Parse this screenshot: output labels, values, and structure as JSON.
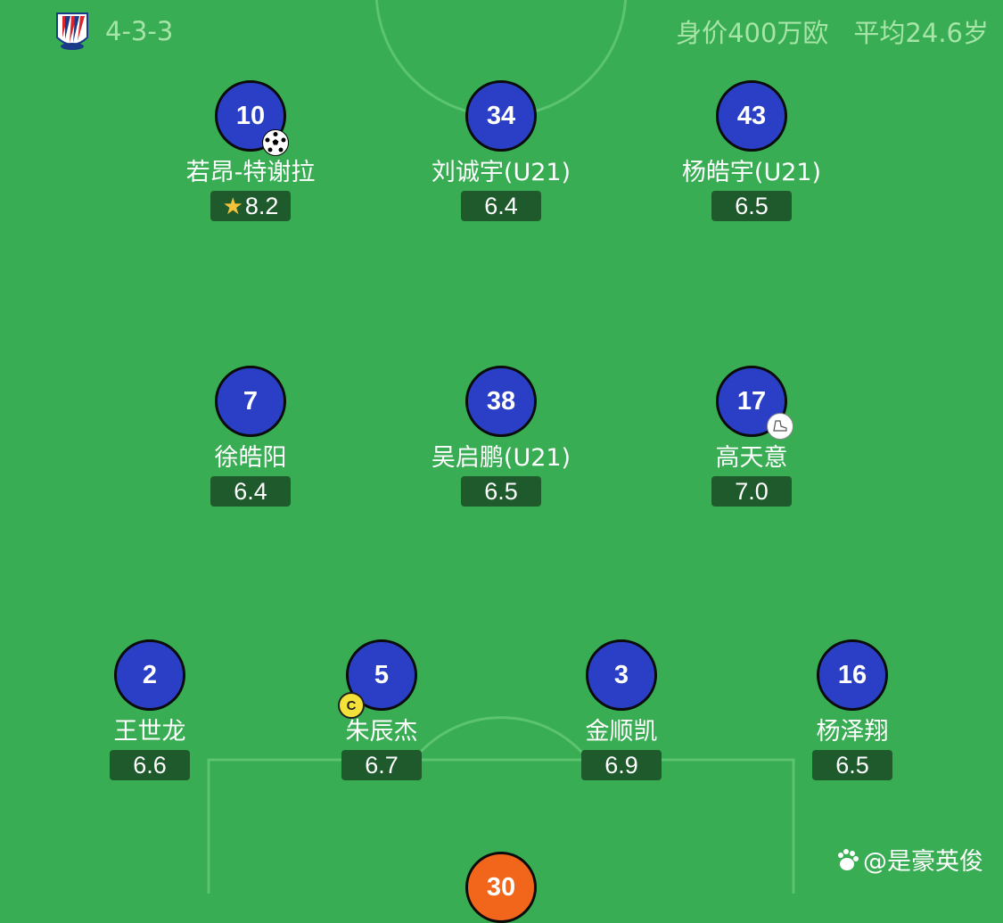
{
  "header": {
    "formation": "4-3-3",
    "market_value": "身价400万欧",
    "average_age": "平均24.6岁"
  },
  "colors": {
    "pitch": "#38ad53",
    "outfield_shirt": "#2a3fc6",
    "goalkeeper_shirt": "#f2661c",
    "rating_bg": "#1e5a2c",
    "header_text": "#a6e4a8"
  },
  "players": [
    {
      "number": "10",
      "name": "若昂-特谢拉",
      "rating": "8.2",
      "badge": "football-icon",
      "top_rated": true
    },
    {
      "number": "34",
      "name": "刘诚宇(U21)",
      "rating": "6.4"
    },
    {
      "number": "43",
      "name": "杨皓宇(U21)",
      "rating": "6.5"
    },
    {
      "number": "7",
      "name": "徐皓阳",
      "rating": "6.4"
    },
    {
      "number": "38",
      "name": "吴启鹏(U21)",
      "rating": "6.5"
    },
    {
      "number": "17",
      "name": "高天意",
      "rating": "7.0",
      "badge": "boot-icon"
    },
    {
      "number": "2",
      "name": "王世龙",
      "rating": "6.6"
    },
    {
      "number": "5",
      "name": "朱辰杰",
      "rating": "6.7",
      "badge": "captain-icon",
      "captain_label": "C"
    },
    {
      "number": "3",
      "name": "金顺凯",
      "rating": "6.9"
    },
    {
      "number": "16",
      "name": "杨泽翔",
      "rating": "6.5"
    },
    {
      "number": "30",
      "goalkeeper": true
    }
  ],
  "watermark": "@是豪英俊"
}
